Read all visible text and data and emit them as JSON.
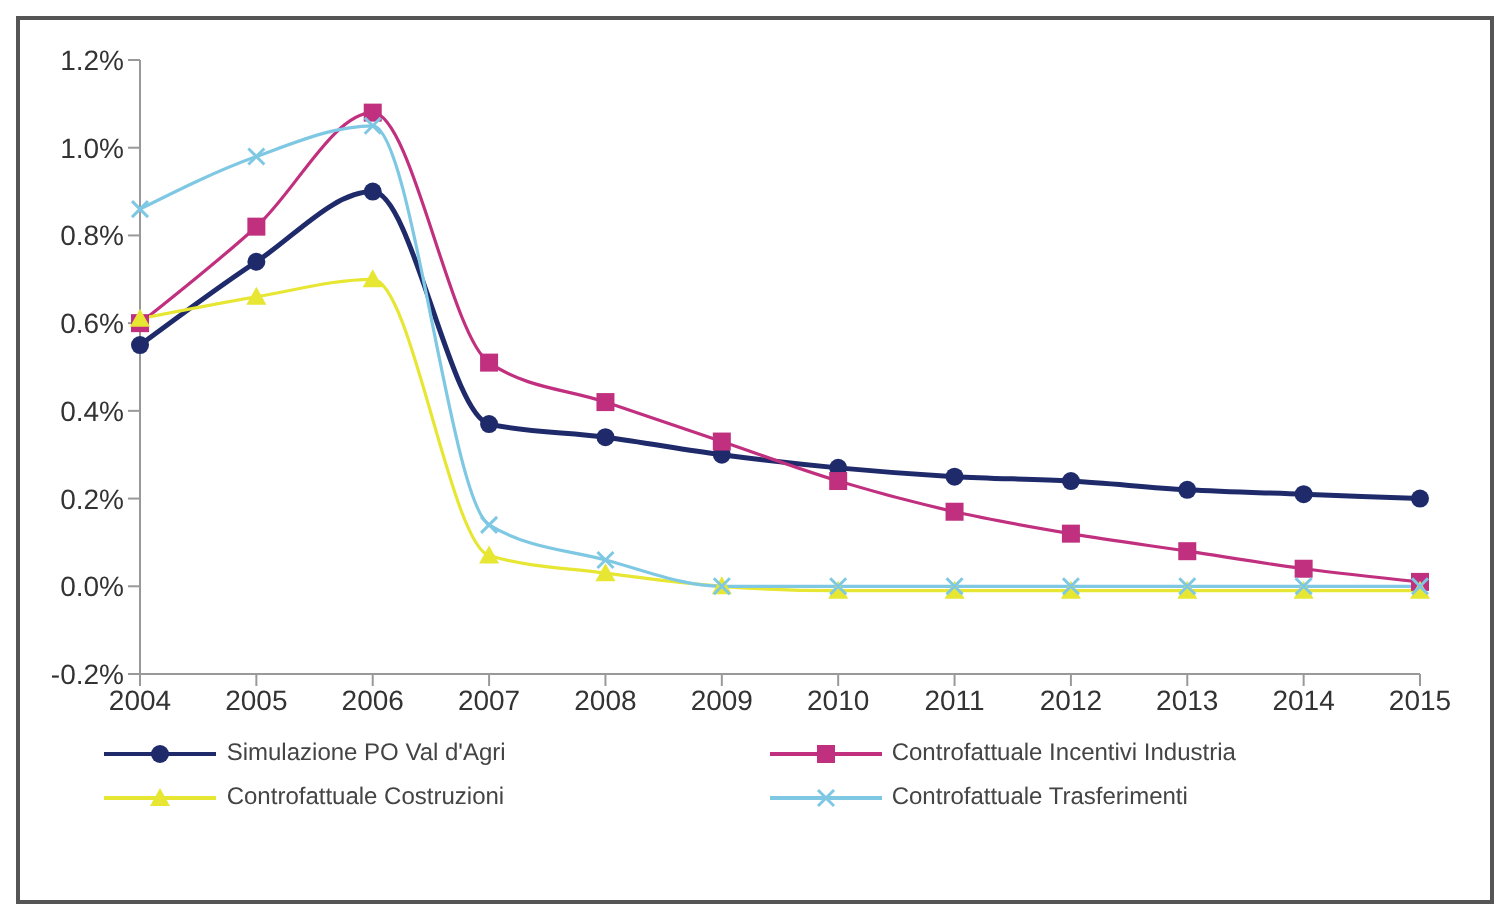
{
  "chart_data": {
    "type": "line",
    "categories": [
      "2004",
      "2005",
      "2006",
      "2007",
      "2008",
      "2009",
      "2010",
      "2011",
      "2012",
      "2013",
      "2014",
      "2015"
    ],
    "series": [
      {
        "name": "Simulazione PO Val d'Agri",
        "color": "#1f2a6b",
        "marker": "circle",
        "values": [
          0.55,
          0.74,
          0.9,
          0.37,
          0.34,
          0.3,
          0.27,
          0.25,
          0.24,
          0.22,
          0.21,
          0.2
        ]
      },
      {
        "name": "Controfattuale Incentivi Industria",
        "color": "#c0307f",
        "marker": "square",
        "values": [
          0.6,
          0.82,
          1.08,
          0.51,
          0.42,
          0.33,
          0.24,
          0.17,
          0.12,
          0.08,
          0.04,
          0.01
        ]
      },
      {
        "name": "Controfattuale Costruzioni",
        "color": "#e6e633",
        "marker": "triangle",
        "values": [
          0.61,
          0.66,
          0.7,
          0.07,
          0.03,
          0.0,
          -0.01,
          -0.01,
          -0.01,
          -0.01,
          -0.01,
          -0.01
        ]
      },
      {
        "name": "Controfattuale Trasferimenti",
        "color": "#7ec8e3",
        "marker": "cross",
        "values": [
          0.86,
          0.98,
          1.05,
          0.14,
          0.06,
          0.0,
          0.0,
          0.0,
          0.0,
          0.0,
          0.0,
          0.0
        ]
      }
    ],
    "ylim": [
      -0.2,
      1.2
    ],
    "yticks": [
      {
        "value": -0.2,
        "label": "-0.2%"
      },
      {
        "value": 0,
        "label": "0.0%"
      },
      {
        "value": 0.2,
        "label": "0.2%"
      },
      {
        "value": 0.4,
        "label": "0.4%"
      },
      {
        "value": 0.6,
        "label": "0.6%"
      },
      {
        "value": 0.8,
        "label": "0.8%"
      },
      {
        "value": 1.0,
        "label": "1.0%"
      },
      {
        "value": 1.2,
        "label": "1.2%"
      }
    ],
    "grid": false,
    "legend": "bottom"
  }
}
